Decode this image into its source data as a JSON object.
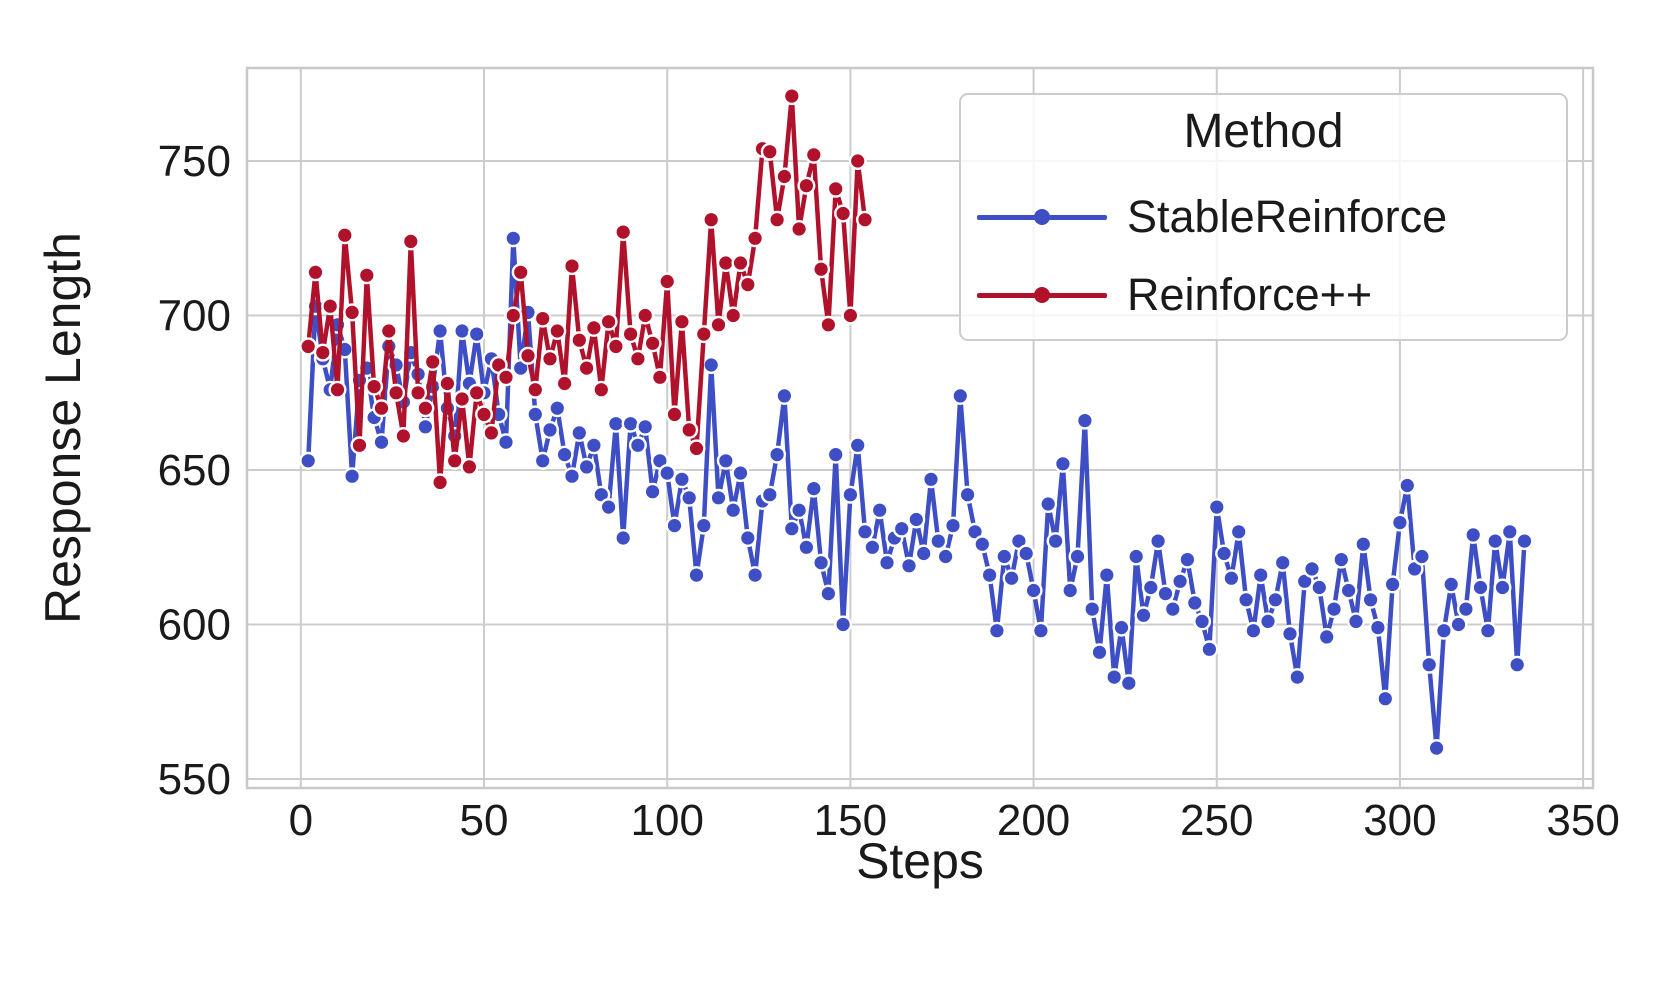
{
  "figure": {
    "background": "#ffffff"
  },
  "chart_data": {
    "type": "line",
    "title": "",
    "xlabel": "Steps",
    "ylabel": "Response Length",
    "xlim": [
      -14.7,
      352.7
    ],
    "ylim": [
      547.1,
      780.1
    ],
    "xticks": [
      0,
      50,
      100,
      150,
      200,
      250,
      300,
      350
    ],
    "yticks": [
      550,
      600,
      650,
      700,
      750
    ],
    "grid": true,
    "grid_color": "#cccccc",
    "spine_color": "#c8c8c8",
    "tick_label_color": "#1a1a1a",
    "legend": {
      "title": "Method",
      "position": "upper right"
    },
    "series": [
      {
        "name": "StableReinforce",
        "color": "#3e4ec4",
        "marker": "circle",
        "marker_edge_color": "#ffffff",
        "x": [
          2,
          4,
          6,
          8,
          10,
          12,
          14,
          16,
          18,
          20,
          22,
          24,
          26,
          28,
          30,
          32,
          34,
          36,
          38,
          40,
          42,
          44,
          46,
          48,
          50,
          52,
          54,
          56,
          58,
          60,
          62,
          64,
          66,
          68,
          70,
          72,
          74,
          76,
          78,
          80,
          82,
          84,
          86,
          88,
          90,
          92,
          94,
          96,
          98,
          100,
          102,
          104,
          106,
          108,
          110,
          112,
          114,
          116,
          118,
          120,
          122,
          124,
          126,
          128,
          130,
          132,
          134,
          136,
          138,
          140,
          142,
          144,
          146,
          148,
          150,
          152,
          154,
          156,
          158,
          160,
          162,
          164,
          166,
          168,
          170,
          172,
          174,
          176,
          178,
          180,
          182,
          184,
          186,
          188,
          190,
          192,
          194,
          196,
          198,
          200,
          202,
          204,
          206,
          208,
          210,
          212,
          214,
          216,
          218,
          220,
          222,
          224,
          226,
          228,
          230,
          232,
          234,
          236,
          238,
          240,
          242,
          244,
          246,
          248,
          250,
          252,
          254,
          256,
          258,
          260,
          262,
          264,
          266,
          268,
          270,
          272,
          274,
          276,
          278,
          280,
          282,
          284,
          286,
          288,
          290,
          292,
          294,
          296,
          298,
          300,
          302,
          304,
          306,
          308,
          310,
          312,
          314,
          316,
          318,
          320,
          322,
          324,
          326,
          328,
          330,
          332,
          334
        ],
        "y": [
          653,
          703,
          686,
          676,
          697,
          689,
          648,
          679,
          683,
          667,
          659,
          690,
          684,
          672,
          688,
          681,
          664,
          677,
          695,
          670,
          661,
          695,
          678,
          694,
          675,
          686,
          668,
          659,
          725,
          683,
          701,
          668,
          653,
          663,
          670,
          655,
          648,
          662,
          651,
          658,
          642,
          638,
          665,
          628,
          665,
          658,
          664,
          643,
          653,
          649,
          632,
          647,
          641,
          616,
          632,
          684,
          641,
          653,
          637,
          649,
          628,
          616,
          640,
          642,
          655,
          674,
          631,
          637,
          625,
          644,
          620,
          610,
          655,
          600,
          642,
          658,
          630,
          625,
          637,
          620,
          628,
          631,
          619,
          634,
          623,
          647,
          627,
          622,
          632,
          674,
          642,
          630,
          626,
          616,
          598,
          622,
          615,
          627,
          623,
          611,
          598,
          639,
          627,
          652,
          611,
          622,
          666,
          605,
          591,
          616,
          583,
          599,
          581,
          622,
          603,
          612,
          627,
          610,
          605,
          614,
          621,
          607,
          601,
          592,
          638,
          623,
          615,
          630,
          608,
          598,
          616,
          601,
          608,
          620,
          597,
          583,
          614,
          618,
          612,
          596,
          605,
          621,
          611,
          601,
          626,
          608,
          599,
          576,
          613,
          633,
          645,
          618,
          622,
          587,
          560,
          598,
          613,
          600,
          605,
          629,
          612,
          598,
          627,
          612,
          630,
          587,
          627
        ]
      },
      {
        "name": "Reinforce++",
        "color": "#b0122c",
        "marker": "circle",
        "marker_edge_color": "#ffffff",
        "x": [
          2,
          4,
          6,
          8,
          10,
          12,
          14,
          16,
          18,
          20,
          22,
          24,
          26,
          28,
          30,
          32,
          34,
          36,
          38,
          40,
          42,
          44,
          46,
          48,
          50,
          52,
          54,
          56,
          58,
          60,
          62,
          64,
          66,
          68,
          70,
          72,
          74,
          76,
          78,
          80,
          82,
          84,
          86,
          88,
          90,
          92,
          94,
          96,
          98,
          100,
          102,
          104,
          106,
          108,
          110,
          112,
          114,
          116,
          118,
          120,
          122,
          124,
          126,
          128,
          130,
          132,
          134,
          136,
          138,
          140,
          142,
          144,
          146,
          148,
          150,
          152,
          154
        ],
        "y": [
          690,
          714,
          688,
          703,
          676,
          726,
          701,
          658,
          713,
          677,
          670,
          695,
          675,
          661,
          724,
          675,
          670,
          685,
          646,
          678,
          653,
          673,
          651,
          675,
          668,
          662,
          684,
          680,
          700,
          714,
          687,
          676,
          699,
          686,
          695,
          678,
          716,
          692,
          683,
          696,
          676,
          698,
          690,
          727,
          694,
          686,
          700,
          691,
          680,
          711,
          668,
          698,
          663,
          657,
          694,
          731,
          697,
          717,
          700,
          717,
          710,
          725,
          754,
          753,
          731,
          745,
          771,
          728,
          742,
          752,
          715,
          697,
          741,
          733,
          700,
          750,
          731
        ]
      }
    ]
  }
}
